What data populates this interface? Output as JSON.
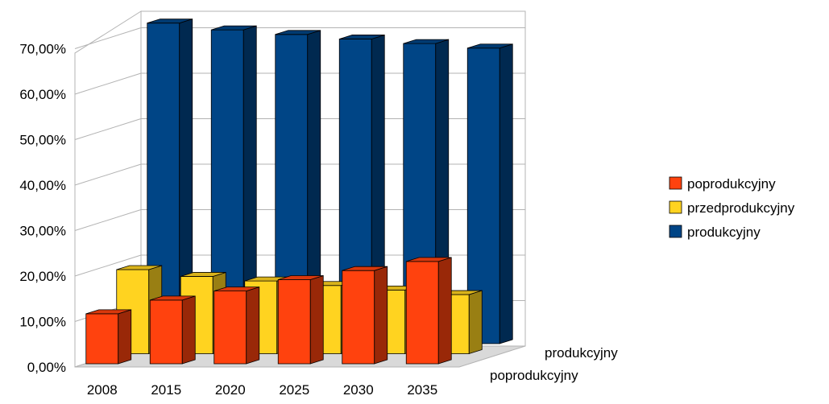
{
  "chart_data": {
    "type": "bar",
    "subtype": "3d-clustered",
    "categories": [
      "2008",
      "2015",
      "2020",
      "2025",
      "2030",
      "2035"
    ],
    "y_ticks": [
      "0,00%",
      "10,00%",
      "20,00%",
      "30,00%",
      "40,00%",
      "50,00%",
      "60,00%",
      "70,00%"
    ],
    "ylim": [
      0,
      70
    ],
    "y_unit": "%",
    "depth_labels": [
      "produkcyjny",
      "poprodukcyjny"
    ],
    "series": [
      {
        "name": "poprodukcyjny",
        "color": "#ff420e",
        "values": [
          11.0,
          14.0,
          16.0,
          18.5,
          20.5,
          22.5
        ]
      },
      {
        "name": "przedprodukcyjny",
        "color": "#ffd320",
        "values": [
          18.5,
          17.0,
          16.0,
          15.0,
          14.0,
          13.0
        ]
      },
      {
        "name": "produkcyjny",
        "color": "#004586",
        "values": [
          70.5,
          69.0,
          68.0,
          67.0,
          66.0,
          65.0
        ]
      }
    ],
    "legend_placement": "right",
    "grid": true
  }
}
